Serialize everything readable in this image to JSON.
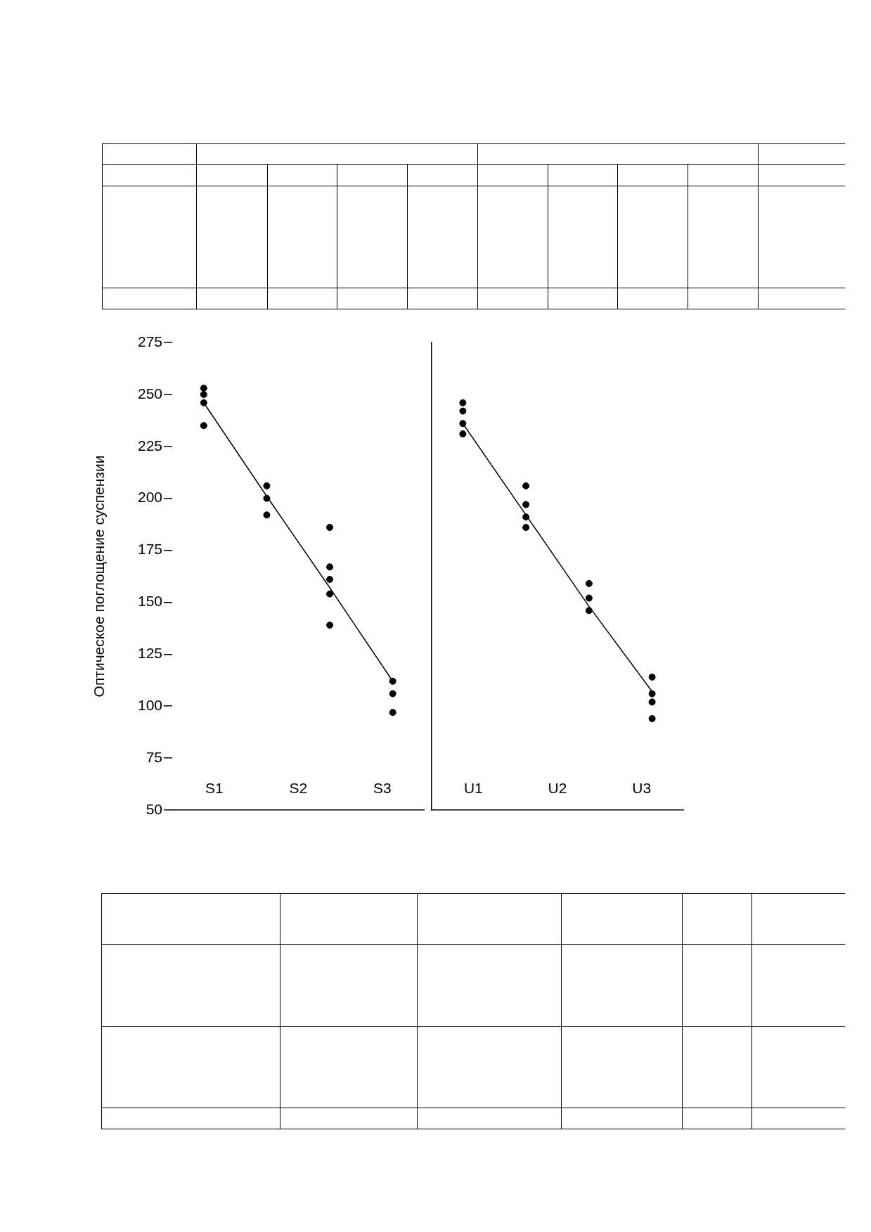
{
  "chart_data": {
    "type": "scatter",
    "ylabel": "Оптическое поглощение суспензии",
    "categories": [
      null,
      null,
      null,
      null,
      null,
      null,
      null,
      null
    ],
    "ylim": [
      50,
      275
    ],
    "yticks": [
      50,
      75,
      100,
      125,
      150,
      175,
      200,
      225,
      250,
      275
    ],
    "marker": "circle",
    "annotations": [
      "S1",
      "S2",
      "S3",
      "U1",
      "U2",
      "U3"
    ],
    "series": [
      {
        "color": "#000000",
        "values": [
          253,
          206,
          186,
          112,
          246,
          206,
          159,
          114
        ]
      },
      {
        "color": "#000000",
        "values": [
          250,
          200,
          167,
          106,
          242,
          197,
          152,
          106
        ]
      },
      {
        "color": "#000000",
        "values": [
          246,
          192,
          161,
          97,
          236,
          191,
          146,
          102
        ]
      },
      {
        "color": "#000000",
        "values": [
          235,
          null,
          154,
          null,
          231,
          186,
          null,
          94
        ]
      },
      {
        "color": "#000000",
        "values": [
          null,
          null,
          139,
          null,
          null,
          null,
          null,
          null
        ]
      },
      {
        "type": "line",
        "marker": "none",
        "line_style": "solid",
        "color": "#000000",
        "values": [
          246,
          201,
          157,
          112,
          null,
          null,
          null,
          null
        ]
      },
      {
        "type": "line",
        "marker": "none",
        "line_style": "solid",
        "color": "#000000",
        "values": [
          null,
          null,
          null,
          null,
          236,
          192,
          148,
          107
        ]
      }
    ]
  }
}
